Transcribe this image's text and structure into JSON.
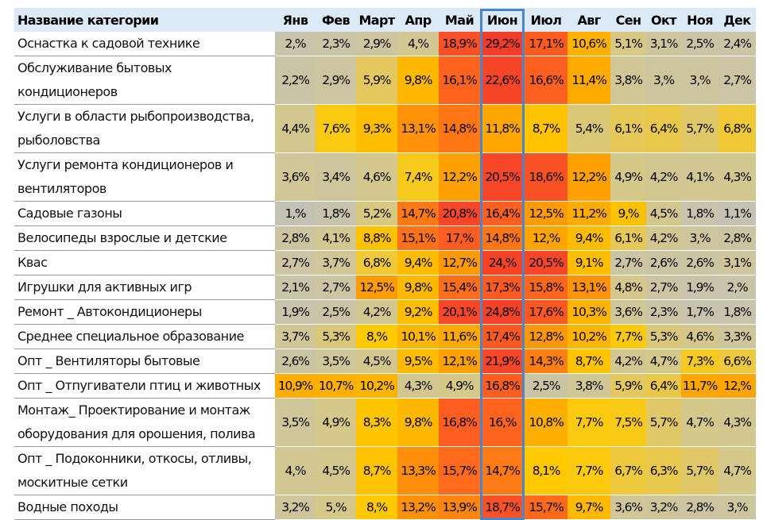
{
  "chart_data": {
    "type": "heatmap",
    "title": "",
    "header_label": "Название категории",
    "highlighted_month": "Июн",
    "months": [
      "Янв",
      "Фев",
      "Март",
      "Апр",
      "Май",
      "Июн",
      "Июл",
      "Авг",
      "Сен",
      "Окт",
      "Ноя",
      "Дек"
    ],
    "rows": [
      {
        "category": "Оснастка к садовой технике",
        "values": [
          "2,%",
          "2,3%",
          "2,9%",
          "4,%",
          "18,9%",
          "29,2%",
          "17,1%",
          "10,6%",
          "5,1%",
          "3,1%",
          "2,5%",
          "2,4%"
        ]
      },
      {
        "category": "Обслуживание бытовых кондиционеров",
        "values": [
          "2,2%",
          "2,9%",
          "5,9%",
          "9,8%",
          "16,1%",
          "22,6%",
          "16,6%",
          "11,4%",
          "3,8%",
          "3,%",
          "3,%",
          "2,7%"
        ]
      },
      {
        "category": "Услуги в области рыбопроизводства, рыболовства",
        "values": [
          "4,4%",
          "7,6%",
          "9,3%",
          "13,1%",
          "14,8%",
          "11,8%",
          "8,7%",
          "5,4%",
          "6,1%",
          "6,4%",
          "5,7%",
          "6,8%"
        ]
      },
      {
        "category": "Услуги ремонта кондиционеров и вентиляторов",
        "values": [
          "3,6%",
          "3,4%",
          "4,6%",
          "7,4%",
          "12,2%",
          "20,5%",
          "18,6%",
          "12,2%",
          "4,9%",
          "4,2%",
          "4,1%",
          "4,3%"
        ]
      },
      {
        "category": "Садовые газоны",
        "values": [
          "1,%",
          "1,8%",
          "5,2%",
          "14,7%",
          "20,8%",
          "16,4%",
          "12,5%",
          "11,2%",
          "9,%",
          "4,5%",
          "1,8%",
          "1,1%"
        ]
      },
      {
        "category": "Велосипеды взрослые и детские",
        "values": [
          "2,8%",
          "4,1%",
          "8,8%",
          "15,1%",
          "17,%",
          "14,8%",
          "12,%",
          "9,4%",
          "6,1%",
          "4,2%",
          "3,%",
          "2,8%"
        ]
      },
      {
        "category": "Квас",
        "values": [
          "2,7%",
          "3,7%",
          "6,8%",
          "9,4%",
          "12,7%",
          "24,%",
          "20,5%",
          "9,1%",
          "2,7%",
          "2,6%",
          "2,6%",
          "3,1%"
        ]
      },
      {
        "category": "Игрушки для активных игр",
        "values": [
          "2,1%",
          "2,7%",
          "12,5%",
          "9,8%",
          "15,4%",
          "17,3%",
          "15,8%",
          "13,1%",
          "4,8%",
          "2,7%",
          "1,9%",
          "2,%"
        ]
      },
      {
        "category": "Ремонт _ Автокондиционеры",
        "values": [
          "1,9%",
          "2,5%",
          "4,2%",
          "9,2%",
          "20,1%",
          "24,8%",
          "17,6%",
          "10,3%",
          "3,6%",
          "2,3%",
          "1,7%",
          "1,8%"
        ]
      },
      {
        "category": "Среднее специальное образование",
        "values": [
          "3,7%",
          "5,3%",
          "8,%",
          "10,1%",
          "11,6%",
          "17,4%",
          "12,8%",
          "10,2%",
          "7,7%",
          "5,3%",
          "4,6%",
          "3,3%"
        ]
      },
      {
        "category": "Опт _ Вентиляторы бытовые",
        "values": [
          "2,6%",
          "3,5%",
          "4,5%",
          "9,5%",
          "12,1%",
          "21,9%",
          "14,3%",
          "8,7%",
          "4,2%",
          "4,7%",
          "7,3%",
          "6,6%"
        ]
      },
      {
        "category": "Опт _ Отпугиватели птиц и животных",
        "values": [
          "10,9%",
          "10,7%",
          "10,2%",
          "4,3%",
          "4,9%",
          "16,8%",
          "2,5%",
          "3,8%",
          "5,9%",
          "6,4%",
          "11,7%",
          "12,%"
        ]
      },
      {
        "category": "Монтаж_ Проектирование и монтаж оборудования для орошения, полива",
        "values": [
          "3,5%",
          "4,9%",
          "8,3%",
          "9,8%",
          "16,8%",
          "16,%",
          "10,8%",
          "7,7%",
          "7,5%",
          "5,7%",
          "4,7%",
          "4,3%"
        ]
      },
      {
        "category": "Опт _ Подоконники, откосы, отливы, москитные сетки",
        "values": [
          "4,%",
          "4,5%",
          "8,7%",
          "13,3%",
          "15,7%",
          "14,7%",
          "8,1%",
          "7,7%",
          "6,7%",
          "6,3%",
          "5,7%",
          "4,7%"
        ]
      },
      {
        "category": "Водные походы",
        "values": [
          "3,2%",
          "5,%",
          "8,%",
          "13,2%",
          "13,9%",
          "18,7%",
          "15,7%",
          "9,7%",
          "3,6%",
          "3,2%",
          "2,8%",
          "3,%"
        ]
      }
    ]
  }
}
